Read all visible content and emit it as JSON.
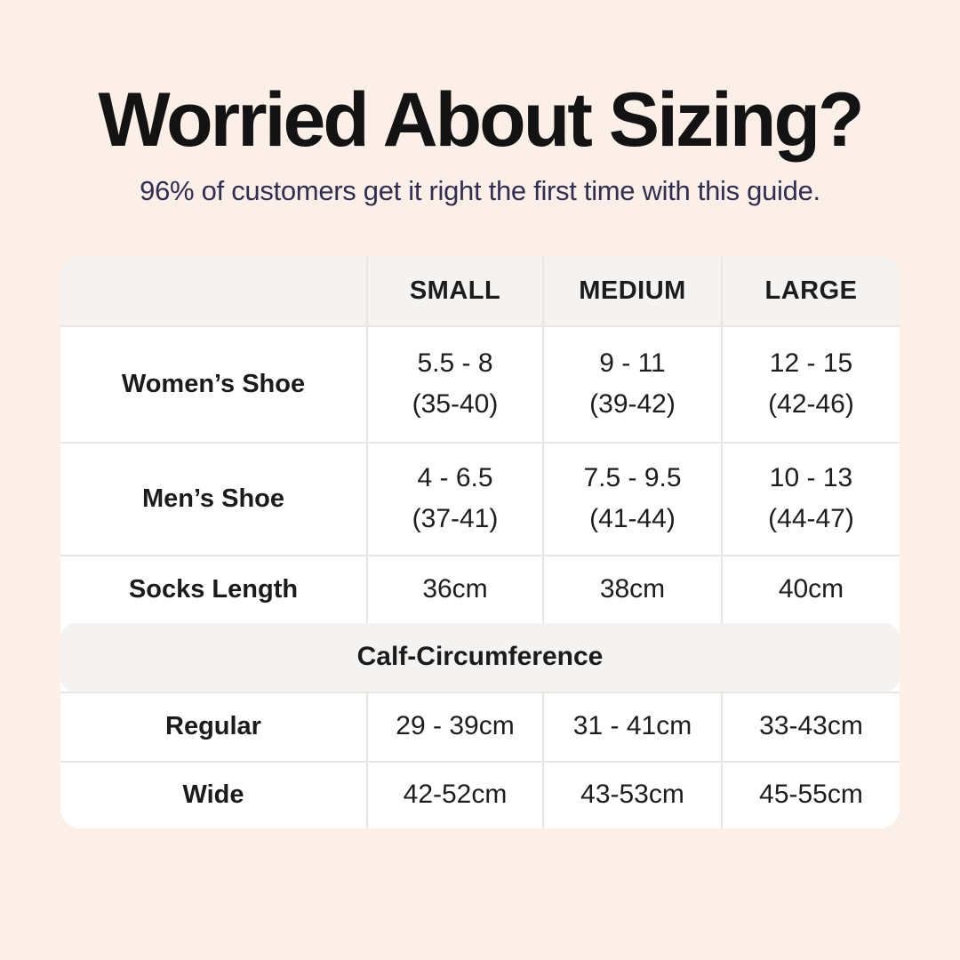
{
  "page": {
    "background_color": "#fcefe7",
    "title": "Worried About Sizing?",
    "title_color": "#131313",
    "subtitle": "96% of customers get it right the first time with this guide.",
    "subtitle_color": "#302e52",
    "table_header_bg": "#f4f3f1",
    "divider_color": "#e8e6e3"
  },
  "table": {
    "column_headers": [
      "SMALL",
      "MEDIUM",
      "LARGE"
    ],
    "rows": [
      {
        "label": "Women’s Shoe",
        "cells": [
          {
            "line1": "5.5 - 8",
            "line2": "(35-40)"
          },
          {
            "line1": "9 - 11",
            "line2": "(39-42)"
          },
          {
            "line1": "12 - 15",
            "line2": "(42-46)"
          }
        ]
      },
      {
        "label": "Men’s Shoe",
        "cells": [
          {
            "line1": "4 - 6.5",
            "line2": "(37-41)"
          },
          {
            "line1": "7.5 - 9.5",
            "line2": "(41-44)"
          },
          {
            "line1": "10 - 13",
            "line2": "(44-47)"
          }
        ]
      },
      {
        "label": "Socks Length",
        "cells": [
          {
            "line1": "36cm"
          },
          {
            "line1": "38cm"
          },
          {
            "line1": "40cm"
          }
        ]
      }
    ],
    "section_header": "Calf-Circumference",
    "section_rows": [
      {
        "label": "Regular",
        "cells": [
          "29 - 39cm",
          "31 - 41cm",
          "33-43cm"
        ]
      },
      {
        "label": "Wide",
        "cells": [
          "42-52cm",
          "43-53cm",
          "45-55cm"
        ]
      }
    ]
  },
  "chart_data": {
    "type": "table",
    "title": "Worried About Sizing?",
    "subtitle": "96% of customers get it right the first time with this guide.",
    "columns": [
      "",
      "SMALL",
      "MEDIUM",
      "LARGE"
    ],
    "rows": [
      [
        "Women's Shoe",
        "5.5 - 8 (35-40)",
        "9 - 11 (39-42)",
        "12 - 15 (42-46)"
      ],
      [
        "Men's Shoe",
        "4 - 6.5 (37-41)",
        "7.5 - 9.5 (41-44)",
        "10 - 13 (44-47)"
      ],
      [
        "Socks Length",
        "36cm",
        "38cm",
        "40cm"
      ],
      [
        "Calf-Circumference (section header spanning all columns)",
        "",
        "",
        ""
      ],
      [
        "Regular",
        "29 - 39cm",
        "31 - 41cm",
        "33-43cm"
      ],
      [
        "Wide",
        "42-52cm",
        "43-53cm",
        "45-55cm"
      ]
    ]
  }
}
